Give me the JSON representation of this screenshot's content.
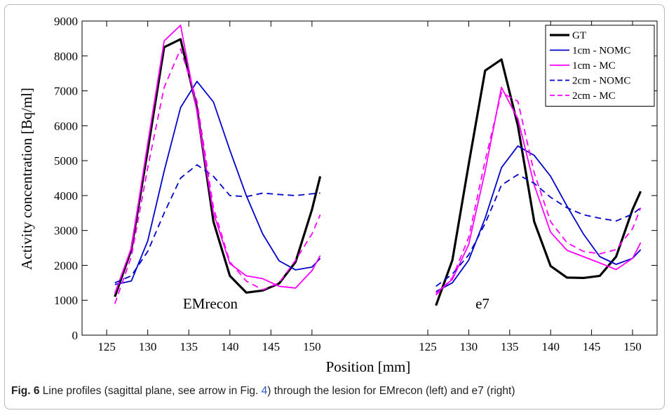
{
  "chart_data": {
    "type": "line",
    "ylabel": "Activity concentration [Bq/ml]",
    "xlabel": "Position [mm]",
    "ylim": [
      0,
      9000
    ],
    "yticks": [
      0,
      1000,
      2000,
      3000,
      4000,
      5000,
      6000,
      7000,
      8000,
      9000
    ],
    "xticks": [
      125,
      130,
      135,
      140,
      145,
      150
    ],
    "xlim": [
      122,
      153
    ],
    "grid": false,
    "legend_position": "top-right",
    "x": [
      126,
      128,
      130,
      132,
      134,
      136,
      138,
      140,
      142,
      144,
      146,
      148,
      150,
      151
    ],
    "panels": [
      {
        "label": "EMrecon",
        "series": [
          {
            "name": "GT",
            "color": "#000000",
            "dash": "solid",
            "width": 3.2,
            "values": [
              1100,
              2450,
              5300,
              8250,
              8480,
              6500,
              3250,
              1700,
              1220,
              1280,
              1480,
              2100,
              3600,
              4550
            ]
          },
          {
            "name": "1cm - NOMC",
            "color": "#0000cc",
            "dash": "solid",
            "width": 1.8,
            "values": [
              1450,
              1550,
              2700,
              4700,
              6520,
              7270,
              6680,
              5300,
              4000,
              2900,
              2130,
              1870,
              1950,
              2200
            ]
          },
          {
            "name": "1cm - MC",
            "color": "#ff00ff",
            "dash": "solid",
            "width": 1.8,
            "values": [
              1200,
              2500,
              5500,
              8430,
              8880,
              6400,
              3500,
              2050,
              1700,
              1620,
              1400,
              1350,
              1850,
              2280
            ]
          },
          {
            "name": "2cm - NOMC",
            "color": "#0000cc",
            "dash": "dashed",
            "width": 1.8,
            "values": [
              1500,
              1700,
              2400,
              3500,
              4500,
              4880,
              4550,
              4000,
              3970,
              4070,
              4030,
              4000,
              4050,
              4070
            ]
          },
          {
            "name": "2cm - MC",
            "color": "#ff00ff",
            "dash": "dashed",
            "width": 1.8,
            "values": [
              900,
              2250,
              4800,
              7100,
              8200,
              6700,
              3650,
              2100,
              1550,
              1300,
              1500,
              2150,
              2900,
              3450
            ]
          }
        ]
      },
      {
        "label": "e7",
        "series": [
          {
            "name": "GT",
            "color": "#000000",
            "dash": "solid",
            "width": 3.2,
            "values": [
              850,
              2150,
              4900,
              7580,
              7900,
              6000,
              3250,
              1980,
              1650,
              1640,
              1700,
              2250,
              3600,
              4120
            ]
          },
          {
            "name": "1cm - NOMC",
            "color": "#0000cc",
            "dash": "solid",
            "width": 1.8,
            "values": [
              1250,
              1500,
              2150,
              3350,
              4800,
              5420,
              5150,
              4550,
              3700,
              2900,
              2250,
              2030,
              2200,
              2450
            ]
          },
          {
            "name": "1cm - MC",
            "color": "#ff00ff",
            "dash": "solid",
            "width": 1.8,
            "values": [
              1200,
              1600,
              2600,
              4700,
              7100,
              6200,
              4300,
              2950,
              2430,
              2250,
              2070,
              1880,
              2200,
              2650
            ]
          },
          {
            "name": "2cm - NOMC",
            "color": "#0000cc",
            "dash": "dashed",
            "width": 1.8,
            "values": [
              1400,
              1750,
              2300,
              3200,
              4300,
              4600,
              4350,
              3950,
              3650,
              3450,
              3350,
              3270,
              3470,
              3650
            ]
          },
          {
            "name": "2cm - MC",
            "color": "#ff00ff",
            "dash": "dashed",
            "width": 1.8,
            "values": [
              1150,
              1650,
              2800,
              5000,
              6950,
              6700,
              4650,
              3250,
              2650,
              2400,
              2330,
              2450,
              3050,
              3650
            ]
          }
        ]
      }
    ]
  },
  "caption": {
    "fig_label": "Fig. 6",
    "text_before": "  Line profiles (sagittal plane, see arrow in Fig. ",
    "ref": "4",
    "text_after": ") through the lesion for EMrecon (left) and e7 (right)"
  }
}
